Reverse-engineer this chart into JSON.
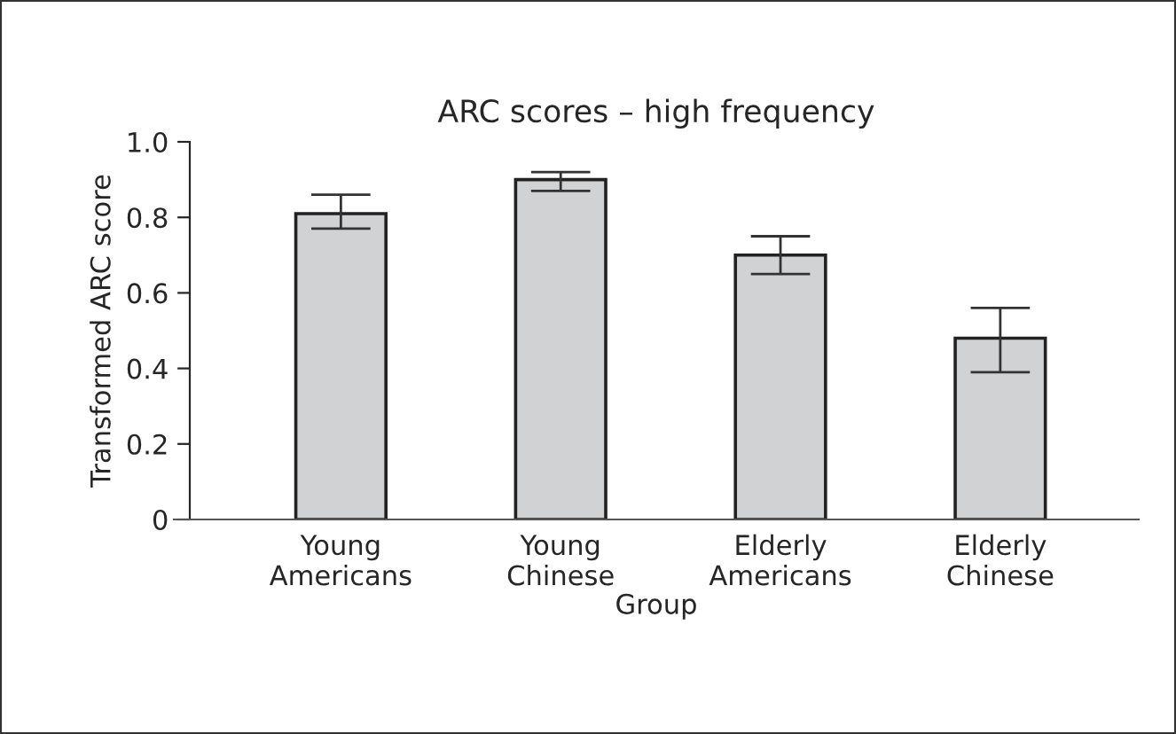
{
  "chart_data": {
    "type": "bar",
    "title": "ARC scores – high frequency",
    "xlabel": "Group",
    "ylabel": "Transformed ARC score",
    "categories": [
      "Young\nAmericans",
      "Young\nChinese",
      "Elderly\nAmericans",
      "Elderly\nChinese"
    ],
    "values": [
      0.81,
      0.9,
      0.7,
      0.48
    ],
    "errors": [
      [
        0.77,
        0.86
      ],
      [
        0.87,
        0.92
      ],
      [
        0.65,
        0.75
      ],
      [
        0.39,
        0.56
      ]
    ],
    "color": "#d1d2d4",
    "ylim": [
      0,
      1.0
    ],
    "yticks": [
      {
        "value": 0,
        "label": "0"
      },
      0.2,
      0.4,
      0.6,
      0.8,
      {
        "value": 1,
        "label": "1.0"
      }
    ],
    "grid": false
  }
}
